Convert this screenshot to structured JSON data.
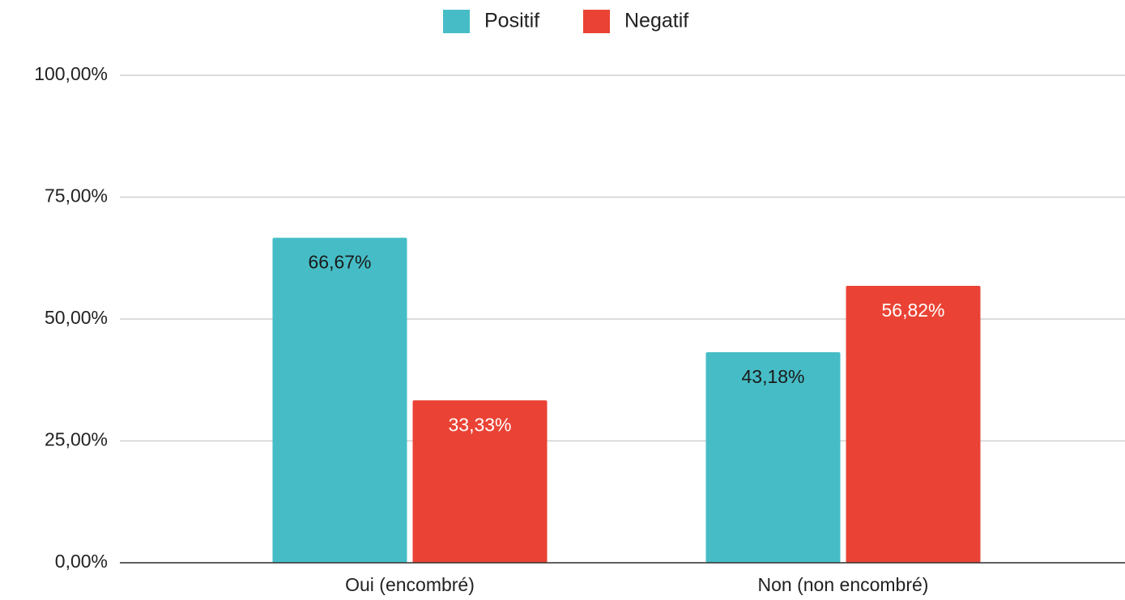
{
  "chart_data": {
    "type": "bar",
    "categories": [
      "Oui (encombré)",
      "Non (non encombré)"
    ],
    "series": [
      {
        "name": "Positif",
        "color": "#46bdc6",
        "values": [
          66.67,
          43.18
        ],
        "value_labels": [
          "66,67%",
          "43,18%"
        ],
        "label_color": "#1a1a1a"
      },
      {
        "name": "Negatif",
        "color": "#ea4335",
        "values": [
          33.33,
          56.82
        ],
        "value_labels": [
          "33,33%",
          "56,82%"
        ],
        "label_color": "#ffffff"
      }
    ],
    "ylim": [
      0,
      100
    ],
    "yticks": [
      {
        "value": 0,
        "label": "0,00%"
      },
      {
        "value": 25,
        "label": "25,00%"
      },
      {
        "value": 50,
        "label": "50,00%"
      },
      {
        "value": 75,
        "label": "75,00%"
      },
      {
        "value": 100,
        "label": "100,00%"
      }
    ],
    "grid": true,
    "legend": "top"
  }
}
